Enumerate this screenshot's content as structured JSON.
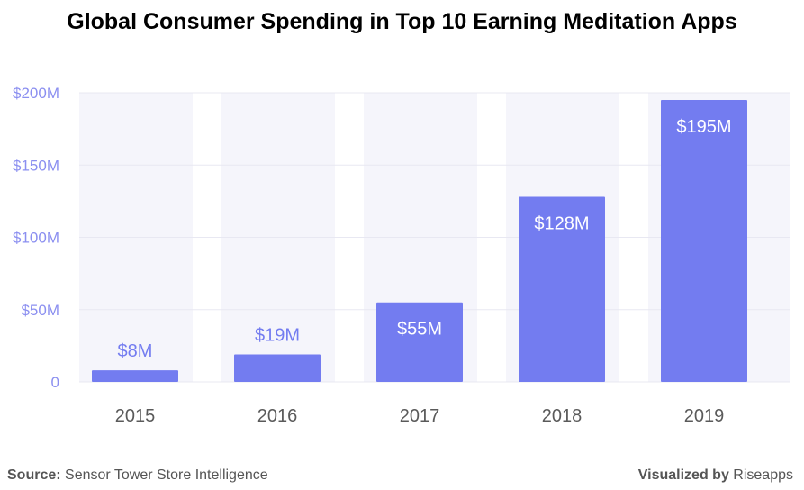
{
  "header": {
    "title": "Global Consumer Spending in Top 10 Earning Meditation Apps"
  },
  "footer": {
    "source_label": "Source:",
    "source_text": "Sensor Tower Store Intelligence",
    "visualized_label": "Visualized by",
    "visualized_brand": "Riseapps"
  },
  "colors": {
    "bar": "#737cf0",
    "bar_label_outside": "#737cf0",
    "bar_label_inside": "#ffffff",
    "band": "#f5f5fb",
    "y_tick": "#8b8ff0",
    "x_tick": "#5a5a5a",
    "grid": "#e8e8f2"
  },
  "chart_data": {
    "type": "bar",
    "title": "Global Consumer Spending in Top 10 Earning Meditation Apps",
    "xlabel": "",
    "ylabel": "",
    "categories": [
      "2015",
      "2016",
      "2017",
      "2018",
      "2019"
    ],
    "values": [
      8,
      19,
      55,
      128,
      195
    ],
    "value_labels": [
      "$8M",
      "$19M",
      "$55M",
      "$128M",
      "$195M"
    ],
    "ylim": [
      0,
      200
    ],
    "y_ticks": [
      0,
      50,
      100,
      150,
      200
    ],
    "y_tick_labels": [
      "0",
      "$50M",
      "$100M",
      "$150M",
      "$200M"
    ],
    "grid": true,
    "legend": "none"
  }
}
